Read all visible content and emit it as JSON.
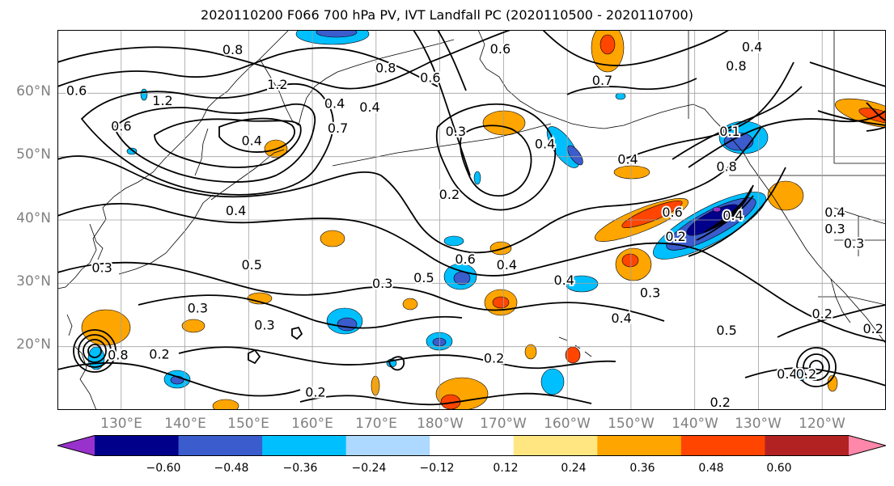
{
  "title": "2020110200 F066 700 hPa PV, IVT Landfall PC (2020110500 - 2020110700)",
  "map": {
    "projection": "cylindrical",
    "lon_range": [
      120,
      250
    ],
    "lat_range": [
      10,
      70
    ],
    "x_ticks": [
      {
        "lon": 130,
        "label": "130°E"
      },
      {
        "lon": 140,
        "label": "140°E"
      },
      {
        "lon": 150,
        "label": "150°E"
      },
      {
        "lon": 160,
        "label": "160°E"
      },
      {
        "lon": 170,
        "label": "170°E"
      },
      {
        "lon": 180,
        "label": "180°W"
      },
      {
        "lon": 190,
        "label": "170°W"
      },
      {
        "lon": 200,
        "label": "160°W"
      },
      {
        "lon": 210,
        "label": "150°W"
      },
      {
        "lon": 220,
        "label": "140°W"
      },
      {
        "lon": 230,
        "label": "130°W"
      },
      {
        "lon": 240,
        "label": "120°W"
      }
    ],
    "y_ticks": [
      {
        "lat": 20,
        "label": "20°N"
      },
      {
        "lat": 30,
        "label": "30°N"
      },
      {
        "lat": 40,
        "label": "40°N"
      },
      {
        "lat": 50,
        "label": "50°N"
      },
      {
        "lat": 60,
        "label": "60°N"
      }
    ],
    "grid": true,
    "contour_labels": [
      {
        "text": "0.8",
        "lon": 147.5,
        "lat": 66.9
      },
      {
        "text": "0.6",
        "lon": 189.5,
        "lat": 67.0
      },
      {
        "text": "0.8",
        "lon": 171.5,
        "lat": 64.0
      },
      {
        "text": "0.6",
        "lon": 178.5,
        "lat": 62.5
      },
      {
        "text": "0.4",
        "lon": 229.0,
        "lat": 67.3
      },
      {
        "text": "0.8",
        "lon": 226.5,
        "lat": 64.3
      },
      {
        "text": "0.7",
        "lon": 205.5,
        "lat": 62.0
      },
      {
        "text": "1.2",
        "lon": 154.5,
        "lat": 61.4
      },
      {
        "text": "1.2",
        "lon": 136.5,
        "lat": 58.8
      },
      {
        "text": "0.4",
        "lon": 163.5,
        "lat": 58.4
      },
      {
        "text": "0.4",
        "lon": 169.0,
        "lat": 57.8
      },
      {
        "text": "0.7",
        "lon": 164.0,
        "lat": 54.5
      },
      {
        "text": "0.6",
        "lon": 130.0,
        "lat": 54.8
      },
      {
        "text": "0.6",
        "lon": 123.0,
        "lat": 60.4
      },
      {
        "text": "0.3",
        "lon": 182.5,
        "lat": 54.0
      },
      {
        "text": "0.4",
        "lon": 150.5,
        "lat": 52.5
      },
      {
        "text": "0.4",
        "lon": 196.5,
        "lat": 52.0
      },
      {
        "text": "0.4",
        "lon": 209.5,
        "lat": 49.6
      },
      {
        "text": "0.8",
        "lon": 225.0,
        "lat": 48.4
      },
      {
        "text": "0.1",
        "lon": 225.5,
        "lat": 54.0
      },
      {
        "text": "0.2",
        "lon": 181.5,
        "lat": 44.0
      },
      {
        "text": "0.4",
        "lon": 148.0,
        "lat": 41.5
      },
      {
        "text": "0.6",
        "lon": 216.5,
        "lat": 41.2
      },
      {
        "text": "0.4",
        "lon": 226.0,
        "lat": 40.7
      },
      {
        "text": "0.2",
        "lon": 217.0,
        "lat": 37.4
      },
      {
        "text": "0.4",
        "lon": 242.0,
        "lat": 41.2
      },
      {
        "text": "0.3",
        "lon": 242.0,
        "lat": 38.6
      },
      {
        "text": "0.5",
        "lon": 150.5,
        "lat": 32.9
      },
      {
        "text": "0.3",
        "lon": 127.0,
        "lat": 32.5
      },
      {
        "text": "0.6",
        "lon": 184.0,
        "lat": 33.8
      },
      {
        "text": "0.4",
        "lon": 190.5,
        "lat": 32.9
      },
      {
        "text": "0.5",
        "lon": 177.5,
        "lat": 30.9
      },
      {
        "text": "0.3",
        "lon": 171.0,
        "lat": 30.0
      },
      {
        "text": "0.4",
        "lon": 199.5,
        "lat": 30.5
      },
      {
        "text": "0.3",
        "lon": 213.0,
        "lat": 28.5
      },
      {
        "text": "0.4",
        "lon": 208.5,
        "lat": 24.5
      },
      {
        "text": "0.3",
        "lon": 142.0,
        "lat": 26.1
      },
      {
        "text": "0.3",
        "lon": 152.5,
        "lat": 23.4
      },
      {
        "text": "0.2",
        "lon": 240.0,
        "lat": 25.2
      },
      {
        "text": "0.5",
        "lon": 225.0,
        "lat": 22.6
      },
      {
        "text": "0.2",
        "lon": 136.0,
        "lat": 18.8
      },
      {
        "text": "0.8",
        "lon": 129.5,
        "lat": 18.7
      },
      {
        "text": "0.2",
        "lon": 188.5,
        "lat": 18.2
      },
      {
        "text": "0.2",
        "lon": 160.5,
        "lat": 12.8
      },
      {
        "text": "0.2",
        "lon": 224.0,
        "lat": 11.2
      },
      {
        "text": "0.4",
        "lon": 234.5,
        "lat": 15.7
      },
      {
        "text": "0.2",
        "lon": 237.5,
        "lat": 15.7
      },
      {
        "text": "0.3",
        "lon": 245.0,
        "lat": 36.3
      },
      {
        "text": "0.2",
        "lon": 248.0,
        "lat": 22.8
      }
    ]
  },
  "colorbar": {
    "ticks": [
      "−0.60",
      "−0.48",
      "−0.36",
      "−0.24",
      "−0.12",
      "0.12",
      "0.24",
      "0.36",
      "0.48",
      "0.60"
    ],
    "levels": [
      -0.6,
      -0.48,
      -0.36,
      -0.24,
      -0.12,
      0.12,
      0.24,
      0.36,
      0.48,
      0.6
    ],
    "colors": [
      "#9932cc",
      "#00008b",
      "#3a5ccc",
      "#00bfff",
      "#add8ff",
      "#ffffff",
      "#ffe680",
      "#ffa500",
      "#ff4500",
      "#b22222",
      "#ff88aa"
    ],
    "extend": "both"
  }
}
